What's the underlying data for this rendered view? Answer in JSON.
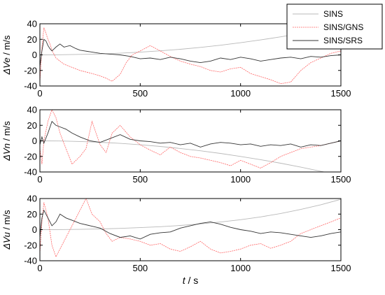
{
  "chart_data": [
    {
      "type": "line",
      "ylabel_symbol": "ΔVe",
      "ylabel_unit": " / m/s",
      "xlim": [
        0,
        1500
      ],
      "ylim": [
        -40,
        40
      ],
      "xticks": [
        0,
        500,
        1000,
        1500
      ],
      "yticks": [
        40,
        20,
        0,
        -20,
        -40
      ],
      "grid": false,
      "legend": {
        "placement": "top-right",
        "entries": [
          "SINS",
          "SINS/GNS",
          "SINS/SRS"
        ]
      },
      "series": [
        {
          "name": "SINS",
          "color": "#b9b9b9",
          "x": [
            0,
            100,
            200,
            300,
            400,
            500,
            600,
            700,
            800,
            900,
            1000,
            1100,
            1200,
            1300,
            1400,
            1500
          ],
          "y": [
            0,
            0.2,
            0.6,
            1.2,
            2.2,
            3.5,
            5.2,
            7.2,
            9.6,
            12.4,
            15.6,
            19.2,
            23.2,
            27.6,
            32.4,
            37.6
          ]
        },
        {
          "name": "SINS/GNS",
          "color": "#ff6666",
          "x": [
            0,
            10,
            20,
            30,
            40,
            50,
            60,
            80,
            100,
            120,
            150,
            180,
            200,
            230,
            260,
            300,
            330,
            360,
            400,
            430,
            460,
            500,
            550,
            600,
            650,
            700,
            750,
            800,
            850,
            900,
            950,
            1000,
            1050,
            1100,
            1150,
            1200,
            1250,
            1300,
            1350,
            1400,
            1450,
            1500
          ],
          "y": [
            -35,
            10,
            35,
            28,
            20,
            14,
            6,
            -4,
            -8,
            -12,
            -15,
            -18,
            -20,
            -22,
            -24,
            -27,
            -30,
            -34,
            -25,
            -10,
            0,
            5,
            12,
            5,
            -2,
            -8,
            -12,
            -15,
            -20,
            -22,
            -18,
            -16,
            -24,
            -28,
            -32,
            -37,
            -35,
            -20,
            -10,
            -4,
            2,
            5
          ]
        },
        {
          "name": "SINS/SRS",
          "color": "#333333",
          "x": [
            0,
            10,
            20,
            30,
            40,
            50,
            60,
            80,
            100,
            120,
            150,
            180,
            200,
            250,
            300,
            350,
            400,
            450,
            500,
            550,
            600,
            650,
            700,
            750,
            800,
            850,
            900,
            950,
            1000,
            1050,
            1100,
            1150,
            1200,
            1250,
            1300,
            1350,
            1400,
            1450,
            1500
          ],
          "y": [
            -15,
            5,
            20,
            18,
            12,
            8,
            5,
            10,
            14,
            10,
            12,
            8,
            6,
            4,
            2,
            1,
            0,
            -2,
            -5,
            -4,
            -6,
            -3,
            -5,
            -8,
            -10,
            -8,
            -4,
            -6,
            -3,
            -5,
            -8,
            -6,
            -4,
            -3,
            -5,
            -2,
            -3,
            -1,
            0
          ]
        }
      ]
    },
    {
      "type": "line",
      "ylabel_symbol": "ΔVn",
      "ylabel_unit": " / m/s",
      "xlim": [
        0,
        1500
      ],
      "ylim": [
        -40,
        40
      ],
      "xticks": [
        0,
        500,
        1000,
        1500
      ],
      "yticks": [
        40,
        20,
        0,
        -20,
        -40
      ],
      "grid": false,
      "series": [
        {
          "name": "SINS",
          "color": "#b9b9b9",
          "x": [
            0,
            100,
            200,
            300,
            400,
            500,
            600,
            700,
            800,
            900,
            1000,
            1100,
            1200,
            1300,
            1400,
            1500
          ],
          "y": [
            0,
            -0.2,
            -0.8,
            -1.8,
            -3.2,
            -5.0,
            -7.2,
            -9.8,
            -12.8,
            -16.2,
            -20.0,
            -24.2,
            -28.8,
            -33.8,
            -39.2,
            -44.0
          ]
        },
        {
          "name": "SINS/GNS",
          "color": "#ff6666",
          "x": [
            0,
            10,
            20,
            40,
            60,
            80,
            100,
            130,
            160,
            200,
            230,
            260,
            300,
            330,
            360,
            400,
            450,
            500,
            550,
            600,
            650,
            700,
            750,
            800,
            850,
            900,
            950,
            1000,
            1050,
            1100,
            1150,
            1200,
            1250,
            1300,
            1350,
            1400,
            1450,
            1500
          ],
          "y": [
            -10,
            -30,
            0,
            25,
            40,
            30,
            10,
            -10,
            -30,
            -20,
            -10,
            25,
            -5,
            -15,
            10,
            20,
            5,
            -5,
            -12,
            -18,
            -8,
            -15,
            -20,
            -22,
            -25,
            -28,
            -32,
            -25,
            -30,
            -35,
            -28,
            -20,
            -15,
            -10,
            -8,
            -6,
            -3,
            0
          ]
        },
        {
          "name": "SINS/SRS",
          "color": "#333333",
          "x": [
            0,
            10,
            20,
            40,
            60,
            80,
            100,
            130,
            160,
            200,
            250,
            300,
            350,
            400,
            450,
            500,
            550,
            600,
            650,
            700,
            750,
            800,
            850,
            900,
            950,
            1000,
            1050,
            1100,
            1150,
            1200,
            1250,
            1300,
            1350,
            1400,
            1450,
            1500
          ],
          "y": [
            -5,
            5,
            -3,
            10,
            25,
            20,
            18,
            15,
            10,
            5,
            0,
            -2,
            3,
            8,
            2,
            0,
            -1,
            -3,
            -2,
            -5,
            -3,
            -8,
            -4,
            -2,
            -3,
            -5,
            -4,
            -7,
            -5,
            -6,
            -4,
            -8,
            -5,
            -6,
            -3,
            0
          ]
        }
      ]
    },
    {
      "type": "line",
      "ylabel_symbol": "ΔVu",
      "ylabel_unit": " / m/s",
      "xlabel_symbol": "t",
      "xlabel_unit": " / s",
      "xlim": [
        0,
        1500
      ],
      "ylim": [
        -40,
        40
      ],
      "xticks": [
        0,
        500,
        1000,
        1500
      ],
      "yticks": [
        40,
        20,
        0,
        -20,
        -40
      ],
      "grid": false,
      "series": [
        {
          "name": "SINS",
          "color": "#b9b9b9",
          "x": [
            0,
            100,
            200,
            300,
            400,
            500,
            600,
            700,
            800,
            900,
            1000,
            1100,
            1200,
            1300,
            1400,
            1500
          ],
          "y": [
            0,
            0.1,
            0.4,
            0.9,
            1.6,
            2.6,
            3.8,
            5.4,
            7.4,
            9.8,
            12.8,
            16.4,
            20.8,
            26.0,
            32.0,
            39.0
          ]
        },
        {
          "name": "SINS/GNS",
          "color": "#ff6666",
          "x": [
            0,
            10,
            20,
            40,
            60,
            80,
            100,
            130,
            160,
            200,
            230,
            260,
            300,
            330,
            360,
            400,
            450,
            500,
            550,
            600,
            650,
            700,
            750,
            800,
            850,
            900,
            950,
            1000,
            1050,
            1100,
            1150,
            1200,
            1250,
            1300,
            1350,
            1400,
            1450,
            1500
          ],
          "y": [
            -30,
            10,
            35,
            15,
            -20,
            -35,
            -25,
            -10,
            5,
            25,
            40,
            20,
            10,
            -5,
            -15,
            -10,
            -12,
            -15,
            -20,
            -18,
            -25,
            -28,
            -22,
            -15,
            -25,
            -30,
            -28,
            -25,
            -20,
            -18,
            -24,
            -20,
            -15,
            -5,
            0,
            5,
            10,
            15
          ]
        },
        {
          "name": "SINS/SRS",
          "color": "#333333",
          "x": [
            0,
            10,
            20,
            40,
            60,
            80,
            100,
            130,
            160,
            200,
            250,
            300,
            350,
            400,
            450,
            500,
            550,
            600,
            650,
            700,
            750,
            800,
            850,
            900,
            950,
            1000,
            1050,
            1100,
            1150,
            1200,
            1250,
            1300,
            1350,
            1400,
            1450,
            1500
          ],
          "y": [
            -10,
            15,
            25,
            15,
            5,
            10,
            20,
            15,
            12,
            8,
            5,
            2,
            -5,
            -10,
            -8,
            -12,
            -6,
            -4,
            -3,
            2,
            5,
            8,
            10,
            7,
            3,
            0,
            -2,
            -5,
            -3,
            -4,
            -6,
            -8,
            -10,
            -8,
            -5,
            -3
          ]
        }
      ]
    }
  ]
}
